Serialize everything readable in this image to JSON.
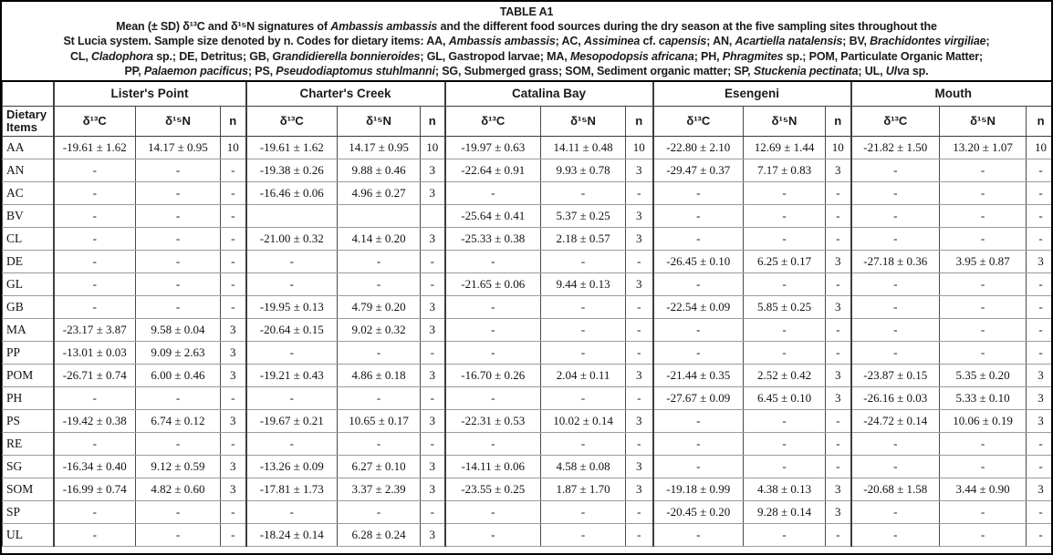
{
  "table": {
    "title": "TABLE A1",
    "caption_segments": [
      {
        "t": "Mean (± SD) δ¹³C and δ¹⁵N signatures of "
      },
      {
        "t": "Ambassis ambassis",
        "i": true
      },
      {
        "t": " and the different food sources during the dry season at the five sampling sites throughout the"
      },
      {
        "br": true
      },
      {
        "t": "St Lucia system. Sample size denoted by n. Codes for dietary items: AA, "
      },
      {
        "t": "Ambassis ambassis",
        "i": true
      },
      {
        "t": "; AC, "
      },
      {
        "t": "Assiminea",
        "i": true
      },
      {
        "t": " cf. "
      },
      {
        "t": "capensis",
        "i": true
      },
      {
        "t": "; AN, "
      },
      {
        "t": "Acartiella natalensis",
        "i": true
      },
      {
        "t": "; BV, "
      },
      {
        "t": "Brachidontes virgiliae",
        "i": true
      },
      {
        "t": ";"
      },
      {
        "br": true
      },
      {
        "t": "CL, "
      },
      {
        "t": "Cladophora",
        "i": true
      },
      {
        "t": " sp.; DE, Detritus; GB, "
      },
      {
        "t": "Grandidierella bonnieroides",
        "i": true
      },
      {
        "t": "; GL, Gastropod larvae; MA, "
      },
      {
        "t": "Mesopodopsis africana",
        "i": true
      },
      {
        "t": "; PH, "
      },
      {
        "t": "Phragmites",
        "i": true
      },
      {
        "t": " sp.; POM, Particulate Organic Matter;"
      },
      {
        "br": true
      },
      {
        "t": "PP, "
      },
      {
        "t": "Palaemon pacificus",
        "i": true
      },
      {
        "t": "; PS, "
      },
      {
        "t": "Pseudodiaptomus stuhlmanni",
        "i": true
      },
      {
        "t": "; SG, Submerged grass; SOM, Sediment organic matter; SP, "
      },
      {
        "t": "Stuckenia pectinata",
        "i": true
      },
      {
        "t": "; UL, "
      },
      {
        "t": "Ulva",
        "i": true
      },
      {
        "t": " sp."
      }
    ],
    "row_header": "Dietary Items",
    "sites": [
      "Lister's Point",
      "Charter's Creek",
      "Catalina Bay",
      "Esengeni",
      "Mouth"
    ],
    "col_headers": {
      "d13c": "δ¹³C",
      "d15n": "δ¹⁵N",
      "n": "n"
    },
    "col_widths": {
      "label": 56,
      "groups": [
        [
          90,
          93,
          28
        ],
        [
          100,
          91,
          27
        ],
        [
          105,
          93,
          30
        ],
        [
          99,
          90,
          28
        ],
        [
          97,
          95,
          32
        ]
      ]
    },
    "rows": [
      {
        "item": "AA",
        "sites": [
          [
            "-19.61 ± 1.62",
            "14.17 ± 0.95",
            "10"
          ],
          [
            "-19.61 ± 1.62",
            "14.17 ± 0.95",
            "10"
          ],
          [
            "-19.97 ± 0.63",
            "14.11 ± 0.48",
            "10"
          ],
          [
            "-22.80 ± 2.10",
            "12.69 ± 1.44",
            "10"
          ],
          [
            "-21.82 ± 1.50",
            "13.20 ± 1.07",
            "10"
          ]
        ]
      },
      {
        "item": "AN",
        "sites": [
          [
            "-",
            "-",
            "-"
          ],
          [
            "-19.38 ± 0.26",
            "9.88 ± 0.46",
            "3"
          ],
          [
            "-22.64 ± 0.91",
            "9.93 ± 0.78",
            "3"
          ],
          [
            "-29.47 ± 0.37",
            "7.17 ± 0.83",
            "3"
          ],
          [
            "-",
            "-",
            "-"
          ]
        ]
      },
      {
        "item": "AC",
        "sites": [
          [
            "-",
            "-",
            "-"
          ],
          [
            "-16.46 ± 0.06",
            "4.96 ± 0.27",
            "3"
          ],
          [
            "-",
            "-",
            "-"
          ],
          [
            "-",
            "-",
            "-"
          ],
          [
            "-",
            "-",
            "-"
          ]
        ]
      },
      {
        "item": "BV",
        "sites": [
          [
            "-",
            "-",
            "-"
          ],
          [
            "",
            "",
            ""
          ],
          [
            "-25.64 ± 0.41",
            "5.37 ± 0.25",
            "3"
          ],
          [
            "-",
            "-",
            "-"
          ],
          [
            "-",
            "-",
            "-"
          ]
        ]
      },
      {
        "item": "CL",
        "sites": [
          [
            "-",
            "-",
            "-"
          ],
          [
            "-21.00 ± 0.32",
            "4.14 ± 0.20",
            "3"
          ],
          [
            "-25.33 ± 0.38",
            "2.18 ± 0.57",
            "3"
          ],
          [
            "-",
            "-",
            "-"
          ],
          [
            "-",
            "-",
            "-"
          ]
        ]
      },
      {
        "item": "DE",
        "sites": [
          [
            "-",
            "-",
            "-"
          ],
          [
            "-",
            "-",
            "-"
          ],
          [
            "-",
            "-",
            "-"
          ],
          [
            "-26.45 ± 0.10",
            "6.25 ± 0.17",
            "3"
          ],
          [
            "-27.18 ± 0.36",
            "3.95 ± 0.87",
            "3"
          ]
        ]
      },
      {
        "item": "GL",
        "sites": [
          [
            "-",
            "-",
            "-"
          ],
          [
            "-",
            "-",
            "-"
          ],
          [
            "-21.65 ± 0.06",
            "9.44 ± 0.13",
            "3"
          ],
          [
            "-",
            "-",
            "-"
          ],
          [
            "-",
            "-",
            "-"
          ]
        ]
      },
      {
        "item": "GB",
        "sites": [
          [
            "-",
            "-",
            "-"
          ],
          [
            "-19.95 ± 0.13",
            "4.79 ± 0.20",
            "3"
          ],
          [
            "-",
            "-",
            "-"
          ],
          [
            "-22.54 ± 0.09",
            "5.85 ± 0.25",
            "3"
          ],
          [
            "-",
            "-",
            "-"
          ]
        ]
      },
      {
        "item": "MA",
        "sites": [
          [
            "-23.17 ± 3.87",
            "9.58 ± 0.04",
            "3"
          ],
          [
            "-20.64 ± 0.15",
            "9.02 ± 0.32",
            "3"
          ],
          [
            "-",
            "-",
            "-"
          ],
          [
            "-",
            "-",
            "-"
          ],
          [
            "-",
            "-",
            "-"
          ]
        ]
      },
      {
        "item": "PP",
        "sites": [
          [
            "-13.01 ± 0.03",
            "9.09 ± 2.63",
            "3"
          ],
          [
            "-",
            "-",
            "-"
          ],
          [
            "-",
            "-",
            "-"
          ],
          [
            "-",
            "-",
            "-"
          ],
          [
            "-",
            "-",
            "-"
          ]
        ]
      },
      {
        "item": "POM",
        "sites": [
          [
            "-26.71 ± 0.74",
            "6.00 ± 0.46",
            "3"
          ],
          [
            "-19.21 ± 0.43",
            "4.86 ± 0.18",
            "3"
          ],
          [
            "-16.70 ± 0.26",
            "2.04 ± 0.11",
            "3"
          ],
          [
            "-21.44 ± 0.35",
            "2.52 ± 0.42",
            "3"
          ],
          [
            "-23.87 ± 0.15",
            "5.35 ± 0.20",
            "3"
          ]
        ]
      },
      {
        "item": "PH",
        "sites": [
          [
            "-",
            "-",
            "-"
          ],
          [
            "-",
            "-",
            "-"
          ],
          [
            "-",
            "-",
            "-"
          ],
          [
            "-27.67 ± 0.09",
            "6.45 ± 0.10",
            "3"
          ],
          [
            "-26.16 ± 0.03",
            "5.33 ± 0.10",
            "3"
          ]
        ]
      },
      {
        "item": "PS",
        "sites": [
          [
            "-19.42 ± 0.38",
            "6.74 ± 0.12",
            "3"
          ],
          [
            "-19.67 ± 0.21",
            "10.65 ± 0.17",
            "3"
          ],
          [
            "-22.31 ± 0.53",
            "10.02 ± 0.14",
            "3"
          ],
          [
            "-",
            "-",
            "-"
          ],
          [
            "-24.72 ± 0.14",
            "10.06 ± 0.19",
            "3"
          ]
        ]
      },
      {
        "item": "RE",
        "sites": [
          [
            "-",
            "-",
            "-"
          ],
          [
            "-",
            "-",
            "-"
          ],
          [
            "-",
            "-",
            "-"
          ],
          [
            "-",
            "-",
            "-"
          ],
          [
            "-",
            "-",
            "-"
          ]
        ]
      },
      {
        "item": "SG",
        "sites": [
          [
            "-16.34 ± 0.40",
            "9.12 ± 0.59",
            "3"
          ],
          [
            "-13.26 ± 0.09",
            "6.27 ± 0.10",
            "3"
          ],
          [
            "-14.11 ± 0.06",
            "4.58 ± 0.08",
            "3"
          ],
          [
            "-",
            "-",
            "-"
          ],
          [
            "-",
            "-",
            "-"
          ]
        ]
      },
      {
        "item": "SOM",
        "sites": [
          [
            "-16.99 ± 0.74",
            "4.82 ± 0.60",
            "3"
          ],
          [
            "-17.81 ± 1.73",
            "3.37 ± 2.39",
            "3"
          ],
          [
            "-23.55 ± 0.25",
            "1.87 ± 1.70",
            "3"
          ],
          [
            "-19.18 ± 0.99",
            "4.38 ± 0.13",
            "3"
          ],
          [
            "-20.68 ± 1.58",
            "3.44 ± 0.90",
            "3"
          ]
        ]
      },
      {
        "item": "SP",
        "sites": [
          [
            "-",
            "-",
            "-"
          ],
          [
            "-",
            "-",
            "-"
          ],
          [
            "-",
            "-",
            "-"
          ],
          [
            "-20.45 ± 0.20",
            "9.28 ± 0.14",
            "3"
          ],
          [
            "-",
            "-",
            "-"
          ]
        ]
      },
      {
        "item": "UL",
        "sites": [
          [
            "-",
            "-",
            "-"
          ],
          [
            "-18.24 ± 0.14",
            "6.28 ± 0.24",
            "3"
          ],
          [
            "-",
            "-",
            "-"
          ],
          [
            "-",
            "-",
            "-"
          ],
          [
            "-",
            "-",
            "-"
          ]
        ]
      }
    ]
  }
}
